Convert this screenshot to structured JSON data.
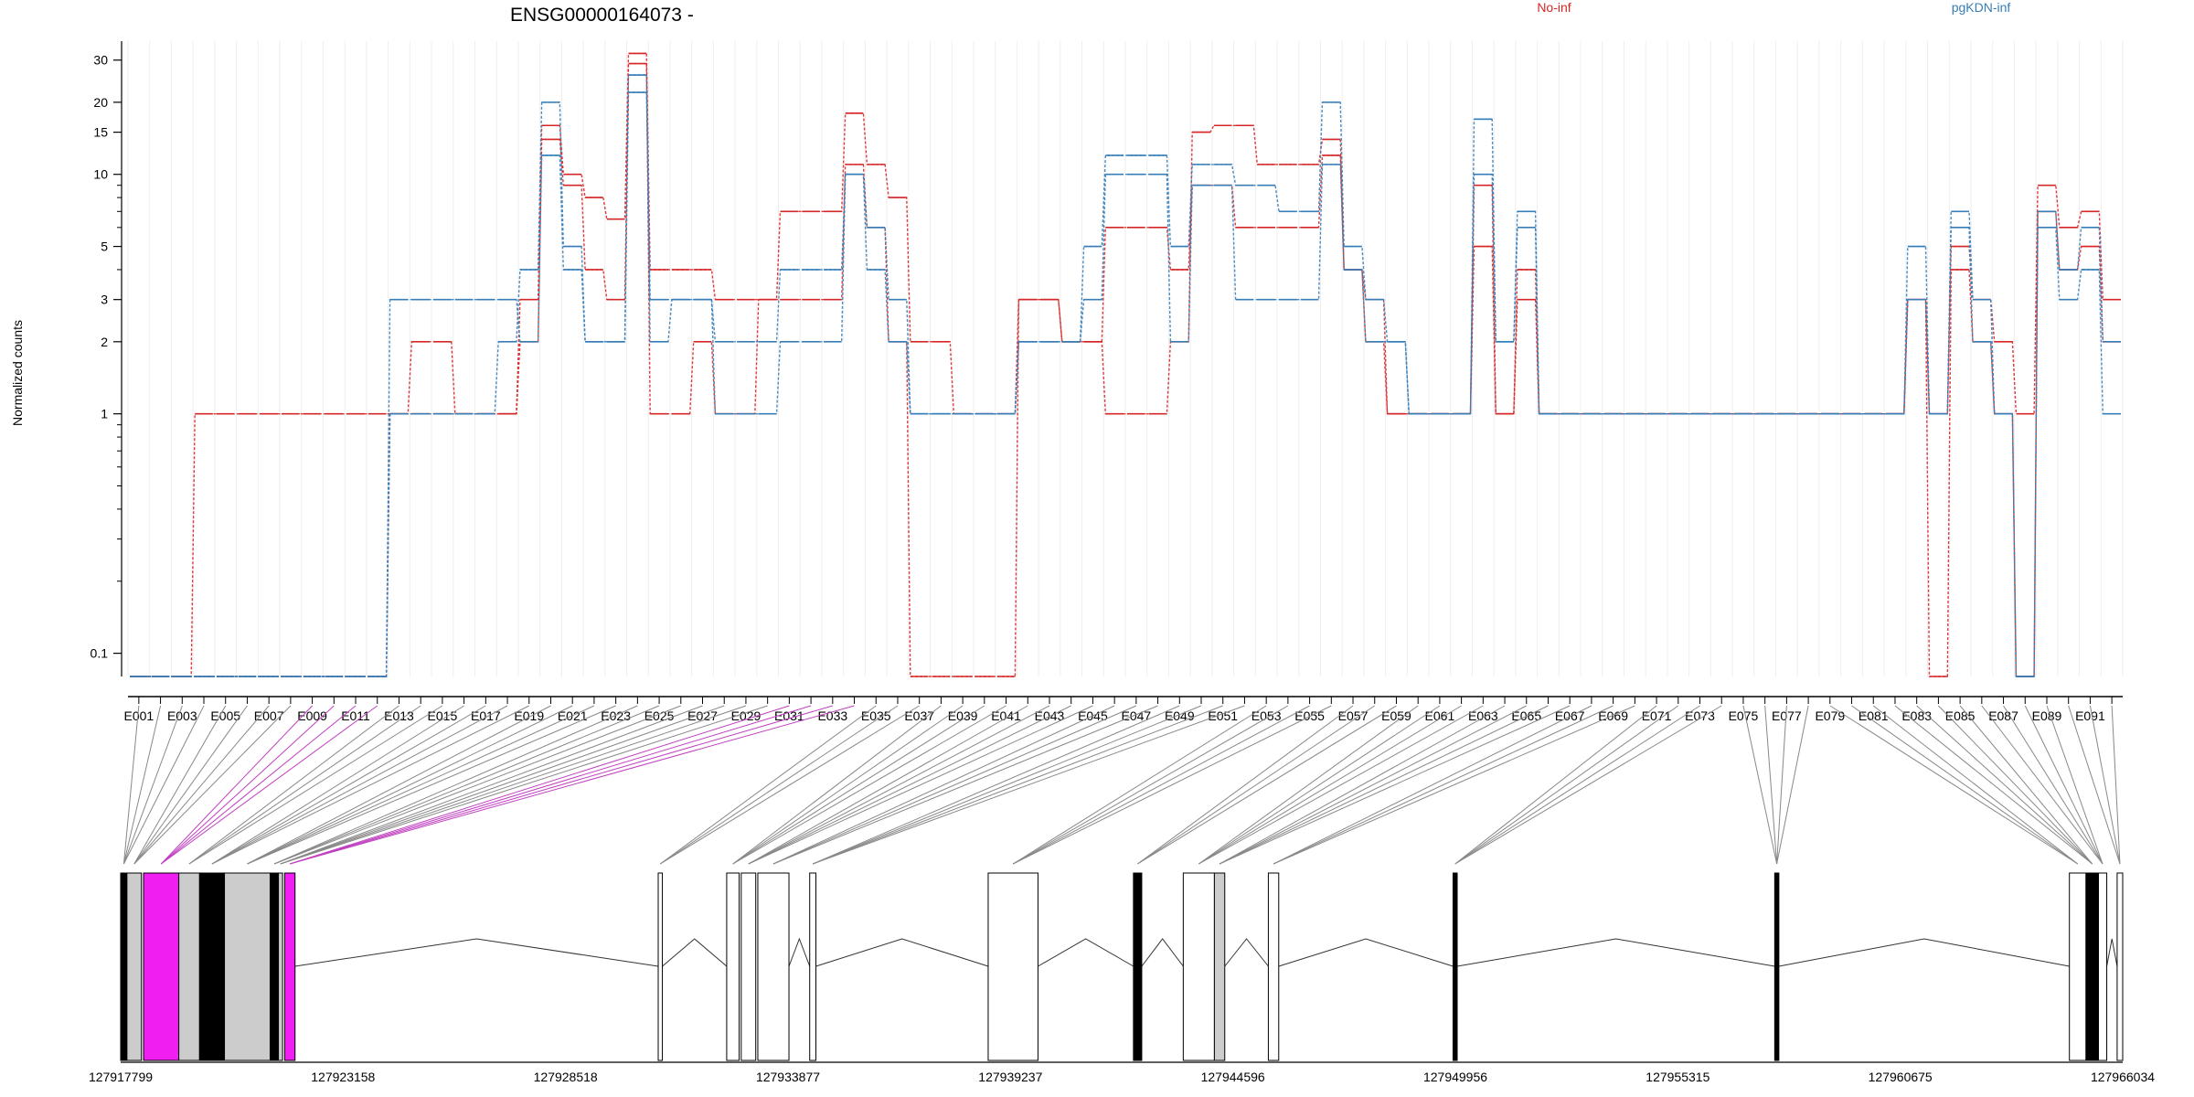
{
  "chart_data": {
    "type": "line",
    "title": "ENSG00000164073 -",
    "ylabel": "Normalized counts",
    "yscale": "log",
    "ylim": [
      0.08,
      36
    ],
    "yticks": [
      0.1,
      1,
      2,
      3,
      5,
      10,
      15,
      20,
      30
    ],
    "ytick_labels": [
      "0.1",
      "1",
      "2",
      "3",
      "5",
      "10",
      "15",
      "20",
      "30"
    ],
    "legend": [
      {
        "name": "No-inf",
        "color": "#d62728"
      },
      {
        "name": "pgKDN-inf",
        "color": "#377eb8"
      }
    ],
    "exon_count": 92,
    "exon_labels": [
      "E001",
      "E003",
      "E005",
      "E007",
      "E009",
      "E011",
      "E013",
      "E015",
      "E017",
      "E019",
      "E021",
      "E023",
      "E025",
      "E027",
      "E029",
      "E031",
      "E033",
      "E035",
      "E037",
      "E039",
      "E041",
      "E043",
      "E045",
      "E047",
      "E049",
      "E051",
      "E053",
      "E055",
      "E057",
      "E059",
      "E061",
      "E063",
      "E065",
      "E067",
      "E069",
      "E071",
      "E073",
      "E075",
      "E077",
      "E079",
      "E081",
      "E083",
      "E085",
      "E087",
      "E089",
      "E091"
    ],
    "series": [
      {
        "name": "No-inf",
        "color": "#d62728",
        "values": [
          0.08,
          0.08,
          0.08,
          1,
          1,
          1,
          1,
          1,
          1,
          1,
          1,
          1,
          1,
          2,
          2,
          1,
          1,
          1,
          3,
          16,
          10,
          8,
          6.5,
          32,
          4,
          4,
          4,
          3,
          3,
          3,
          7,
          7,
          7,
          18,
          11,
          8,
          2,
          2,
          1,
          1,
          1,
          3,
          3,
          2,
          2,
          1,
          1,
          1,
          2,
          15,
          16,
          16,
          11,
          11,
          11,
          14,
          4,
          3,
          1,
          1,
          1,
          1,
          9,
          1,
          3,
          1,
          1,
          1,
          1,
          1,
          1,
          1,
          1,
          1,
          1,
          1,
          1,
          1,
          1,
          1,
          1,
          1,
          3,
          1,
          5,
          3,
          2,
          1,
          9,
          6,
          7,
          3
        ]
      },
      {
        "name": "No-inf",
        "color": "#d62728",
        "values": [
          0.08,
          0.08,
          0.08,
          0.08,
          0.08,
          0.08,
          0.08,
          0.08,
          0.08,
          0.08,
          0.08,
          0.08,
          1,
          1,
          1,
          1,
          1,
          1,
          2,
          14,
          9,
          4,
          3,
          29,
          1,
          1,
          2,
          1,
          1,
          3,
          3,
          3,
          3,
          11,
          6,
          2,
          0.08,
          0.08,
          0.08,
          0.08,
          0.08,
          3,
          3,
          2,
          2,
          6,
          6,
          6,
          4,
          9,
          9,
          6,
          6,
          6,
          6,
          12,
          4,
          2,
          1,
          1,
          1,
          1,
          5,
          1,
          4,
          1,
          1,
          1,
          1,
          1,
          1,
          1,
          1,
          1,
          1,
          1,
          1,
          1,
          1,
          1,
          1,
          1,
          3,
          0.08,
          4,
          2,
          1,
          0.08,
          7,
          4,
          5,
          2
        ]
      },
      {
        "name": "pgKDN-inf",
        "color": "#377eb8",
        "values": [
          0.08,
          0.08,
          0.08,
          0.08,
          0.08,
          0.08,
          0.08,
          0.08,
          0.08,
          0.08,
          0.08,
          0.08,
          1,
          1,
          1,
          1,
          1,
          2,
          4,
          20,
          5,
          2,
          2,
          26,
          2,
          3,
          3,
          1,
          1,
          1,
          2,
          2,
          2,
          10,
          6,
          3,
          1,
          1,
          1,
          1,
          1,
          2,
          2,
          2,
          5,
          12,
          12,
          12,
          5,
          11,
          11,
          9,
          9,
          7,
          7,
          20,
          5,
          3,
          2,
          1,
          1,
          1,
          17,
          2,
          7,
          1,
          1,
          1,
          1,
          1,
          1,
          1,
          1,
          1,
          1,
          1,
          1,
          1,
          1,
          1,
          1,
          1,
          5,
          1,
          7,
          3,
          1,
          0.08,
          7,
          4,
          6,
          2
        ]
      },
      {
        "name": "pgKDN-inf",
        "color": "#377eb8",
        "values": [
          0.08,
          0.08,
          0.08,
          0.08,
          0.08,
          0.08,
          0.08,
          0.08,
          0.08,
          0.08,
          0.08,
          0.08,
          3,
          3,
          3,
          3,
          3,
          3,
          2,
          12,
          4,
          2,
          2,
          22,
          3,
          3,
          3,
          2,
          2,
          2,
          4,
          4,
          4,
          10,
          4,
          2,
          1,
          1,
          1,
          1,
          1,
          2,
          2,
          2,
          3,
          10,
          10,
          10,
          2,
          9,
          9,
          3,
          3,
          3,
          3,
          11,
          4,
          2,
          2,
          1,
          1,
          1,
          10,
          2,
          6,
          1,
          1,
          1,
          1,
          1,
          1,
          1,
          1,
          1,
          1,
          1,
          1,
          1,
          1,
          1,
          1,
          1,
          3,
          1,
          6,
          2,
          1,
          0.08,
          6,
          3,
          4,
          1
        ]
      }
    ],
    "genomic_axis_labels": [
      "127917799",
      "127923158",
      "127928518",
      "127933877",
      "127939237",
      "127944596",
      "127949956",
      "127955315",
      "127960675",
      "127966034"
    ],
    "genomic_range": [
      127917799,
      127966034
    ],
    "exon_blocks": [
      {
        "start": 127917799,
        "end": 127917950,
        "color": "#000000"
      },
      {
        "start": 127917950,
        "end": 127918300,
        "color": "#cccccc"
      },
      {
        "start": 127918350,
        "end": 127919200,
        "color": "#f01ef0"
      },
      {
        "start": 127919200,
        "end": 127919700,
        "color": "#cccccc"
      },
      {
        "start": 127919700,
        "end": 127920300,
        "color": "#000000"
      },
      {
        "start": 127920300,
        "end": 127921400,
        "color": "#cccccc"
      },
      {
        "start": 127921400,
        "end": 127921600,
        "color": "#000000"
      },
      {
        "start": 127921600,
        "end": 127921700,
        "color": "#cccccc"
      },
      {
        "start": 127921750,
        "end": 127922000,
        "color": "#f01ef0"
      },
      {
        "start": 127930750,
        "end": 127930850,
        "color": "#ffffff"
      },
      {
        "start": 127932400,
        "end": 127932700,
        "color": "#ffffff"
      },
      {
        "start": 127932750,
        "end": 127933100,
        "color": "#ffffff"
      },
      {
        "start": 127933150,
        "end": 127933900,
        "color": "#ffffff"
      },
      {
        "start": 127934400,
        "end": 127934550,
        "color": "#ffffff"
      },
      {
        "start": 127938700,
        "end": 127939900,
        "color": "#ffffff"
      },
      {
        "start": 127942200,
        "end": 127942400,
        "color": "#000000"
      },
      {
        "start": 127943400,
        "end": 127944150,
        "color": "#ffffff"
      },
      {
        "start": 127944150,
        "end": 127944400,
        "color": "#cccccc"
      },
      {
        "start": 127945450,
        "end": 127945700,
        "color": "#ffffff"
      },
      {
        "start": 127949900,
        "end": 127950000,
        "color": "#000000"
      },
      {
        "start": 127957650,
        "end": 127957750,
        "color": "#000000"
      },
      {
        "start": 127964750,
        "end": 127965150,
        "color": "#ffffff"
      },
      {
        "start": 127965150,
        "end": 127965450,
        "color": "#000000"
      },
      {
        "start": 127965450,
        "end": 127965650,
        "color": "#ffffff"
      },
      {
        "start": 127965900,
        "end": 127966034,
        "color": "#ffffff"
      }
    ],
    "grid": true
  }
}
